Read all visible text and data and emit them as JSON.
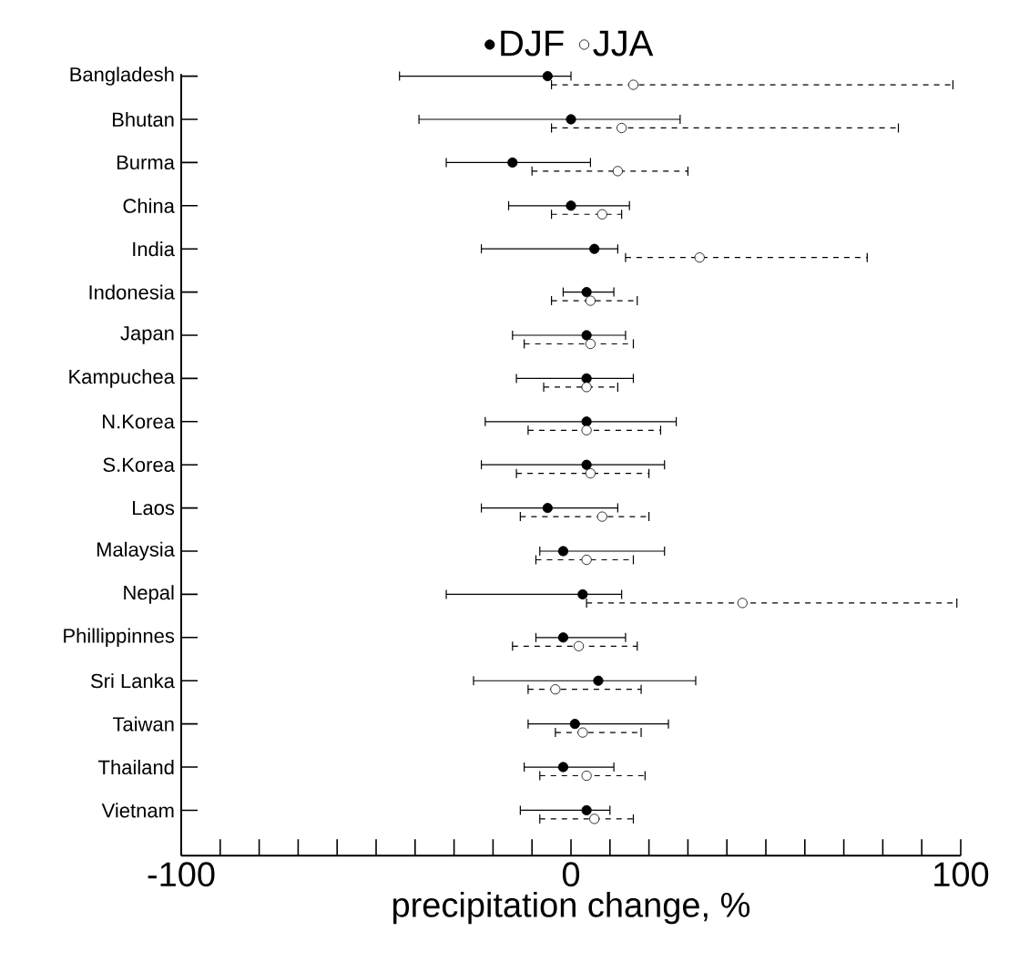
{
  "chart_data": {
    "type": "scatter",
    "orientation": "horizontal",
    "xlabel": "precipitation change, %",
    "categories": [
      "Bangladesh",
      "Bhutan",
      "Burma",
      "China",
      "India",
      "Indonesia",
      "Japan",
      "Kampuchea",
      "N.Korea",
      "S.Korea",
      "Laos",
      "Malaysia",
      "Nepal",
      "Phillippinnes",
      "Sri Lanka",
      "Taiwan",
      "Thailand",
      "Vietnam"
    ],
    "series": [
      {
        "name": "DJF",
        "color": "#000000",
        "marker": "circle",
        "line_style": "solid",
        "values": [
          -6,
          0,
          -15,
          0,
          6,
          4,
          4,
          4,
          4,
          4,
          -6,
          -2,
          3,
          -2,
          7,
          1,
          -2,
          4
        ],
        "errors": [
          [
            -44,
            0
          ],
          [
            -39,
            28
          ],
          [
            -32,
            5
          ],
          [
            -16,
            15
          ],
          [
            -23,
            12
          ],
          [
            -2,
            11
          ],
          [
            -15,
            14
          ],
          [
            -14,
            16
          ],
          [
            -22,
            27
          ],
          [
            -23,
            24
          ],
          [
            -23,
            12
          ],
          [
            -8,
            24
          ],
          [
            -32,
            13
          ],
          [
            -9,
            14
          ],
          [
            -25,
            32
          ],
          [
            -11,
            25
          ],
          [
            -12,
            11
          ],
          [
            -13,
            10
          ]
        ]
      },
      {
        "name": "JJA",
        "color": "#000000",
        "marker": "circle",
        "line_style": "dashed",
        "values": [
          16,
          13,
          12,
          8,
          33,
          5,
          5,
          4,
          4,
          5,
          8,
          4,
          44,
          2,
          -4,
          3,
          4,
          6
        ],
        "errors": [
          [
            -5,
            98
          ],
          [
            -5,
            84
          ],
          [
            -10,
            30
          ],
          [
            -5,
            13
          ],
          [
            14,
            76
          ],
          [
            -5,
            17
          ],
          [
            -12,
            16
          ],
          [
            -7,
            12
          ],
          [
            -11,
            23
          ],
          [
            -14,
            20
          ],
          [
            -13,
            20
          ],
          [
            -9,
            16
          ],
          [
            4,
            99
          ],
          [
            -15,
            17
          ],
          [
            -11,
            18
          ],
          [
            -4,
            18
          ],
          [
            -8,
            19
          ],
          [
            -8,
            16
          ]
        ]
      }
    ],
    "xlim": [
      -100,
      100
    ],
    "xticks": [
      -100,
      {
        "value": -90,
        "label": null
      },
      {
        "value": -80,
        "label": null
      },
      {
        "value": -70,
        "label": null
      },
      {
        "value": -60,
        "label": null
      },
      {
        "value": -50,
        "label": null
      },
      {
        "value": -40,
        "label": null
      },
      {
        "value": -30,
        "label": null
      },
      {
        "value": -20,
        "label": null
      },
      {
        "value": -10,
        "label": null
      },
      0,
      {
        "value": 10,
        "label": null
      },
      {
        "value": 20,
        "label": null
      },
      {
        "value": 30,
        "label": null
      },
      {
        "value": 40,
        "label": null
      },
      {
        "value": 50,
        "label": null
      },
      {
        "value": 60,
        "label": null
      },
      {
        "value": 70,
        "label": null
      },
      {
        "value": 80,
        "label": null
      },
      {
        "value": 90,
        "label": null
      },
      100
    ],
    "legend": "top"
  }
}
